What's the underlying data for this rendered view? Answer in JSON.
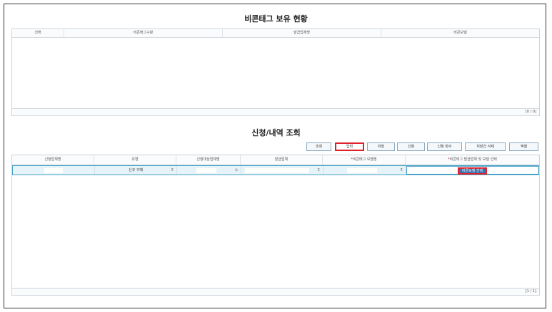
{
  "section1": {
    "title": "비콘태그 보유 현황",
    "columns": [
      "선택",
      "비콘태그구분",
      "발급업체명",
      "비콘모델"
    ],
    "pagination": "[0 / 0]"
  },
  "section2": {
    "title": "신청/내역 조회",
    "buttons": [
      "조회",
      "입력",
      "저장",
      "신청",
      "신청 회수",
      "저장건 삭제",
      "엑셀"
    ],
    "columns": [
      "신청업체명",
      "유형",
      "신청대상업체명",
      "발급업체",
      "비콘태그 모델명",
      "비콘태그 발급업체 및 모델 선택"
    ],
    "required_mark": "*",
    "row": {
      "type": "신규 구매",
      "model_select_button": "비콘모델 선택"
    },
    "pagination": "[1 / 1]"
  },
  "colors": {
    "highlight": "#e0202a",
    "accent": "#3a6fb0",
    "row_bg": "#e6f3f9"
  }
}
